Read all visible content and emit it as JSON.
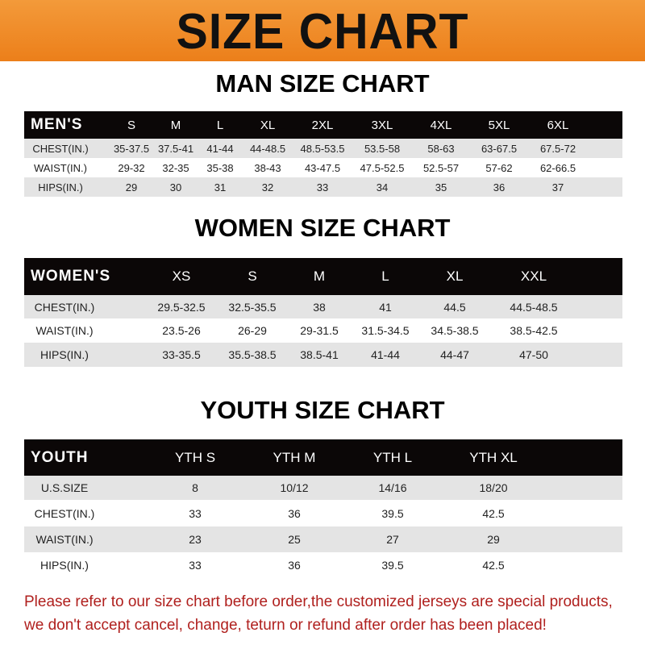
{
  "title": "SIZE CHART",
  "men": {
    "title": "MAN SIZE CHART",
    "header": [
      "MEN'S",
      "S",
      "M",
      "L",
      "XL",
      "2XL",
      "3XL",
      "4XL",
      "5XL",
      "6XL"
    ],
    "rows": [
      [
        "CHEST(IN.)",
        "35-37.5",
        "37.5-41",
        "41-44",
        "44-48.5",
        "48.5-53.5",
        "53.5-58",
        "58-63",
        "63-67.5",
        "67.5-72"
      ],
      [
        "WAIST(IN.)",
        "29-32",
        "32-35",
        "35-38",
        "38-43",
        "43-47.5",
        "47.5-52.5",
        "52.5-57",
        "57-62",
        "62-66.5"
      ],
      [
        "HIPS(IN.)",
        "29",
        "30",
        "31",
        "32",
        "33",
        "34",
        "35",
        "36",
        "37"
      ]
    ]
  },
  "women": {
    "title": "WOMEN SIZE CHART",
    "header": [
      "WOMEN'S",
      "XS",
      "S",
      "M",
      "L",
      "XL",
      "XXL"
    ],
    "rows": [
      [
        "CHEST(IN.)",
        "29.5-32.5",
        "32.5-35.5",
        "38",
        "41",
        "44.5",
        "44.5-48.5"
      ],
      [
        "WAIST(IN.)",
        "23.5-26",
        "26-29",
        "29-31.5",
        "31.5-34.5",
        "34.5-38.5",
        "38.5-42.5"
      ],
      [
        "HIPS(IN.)",
        "33-35.5",
        "35.5-38.5",
        "38.5-41",
        "41-44",
        "44-47",
        "47-50"
      ]
    ]
  },
  "youth": {
    "title": "YOUTH SIZE CHART",
    "header": [
      "YOUTH",
      "YTH S",
      "YTH M",
      "YTH L",
      "YTH XL"
    ],
    "rows": [
      [
        "U.S.SIZE",
        "8",
        "10/12",
        "14/16",
        "18/20"
      ],
      [
        "CHEST(IN.)",
        "33",
        "36",
        "39.5",
        "42.5"
      ],
      [
        "WAIST(IN.)",
        "23",
        "25",
        "27",
        "29"
      ],
      [
        "HIPS(IN.)",
        "33",
        "36",
        "39.5",
        "42.5"
      ]
    ]
  },
  "notice": {
    "line1": "Please refer to our size chart before order,the customized jerseys are special products,",
    "line2": "we don't accept cancel, change, teturn or refund after order has been placed!"
  },
  "colors": {
    "banner": "#ec7f1a",
    "header_bg": "#0b0707",
    "row_alt": "#e4e4e4",
    "notice": "#b0201e"
  }
}
